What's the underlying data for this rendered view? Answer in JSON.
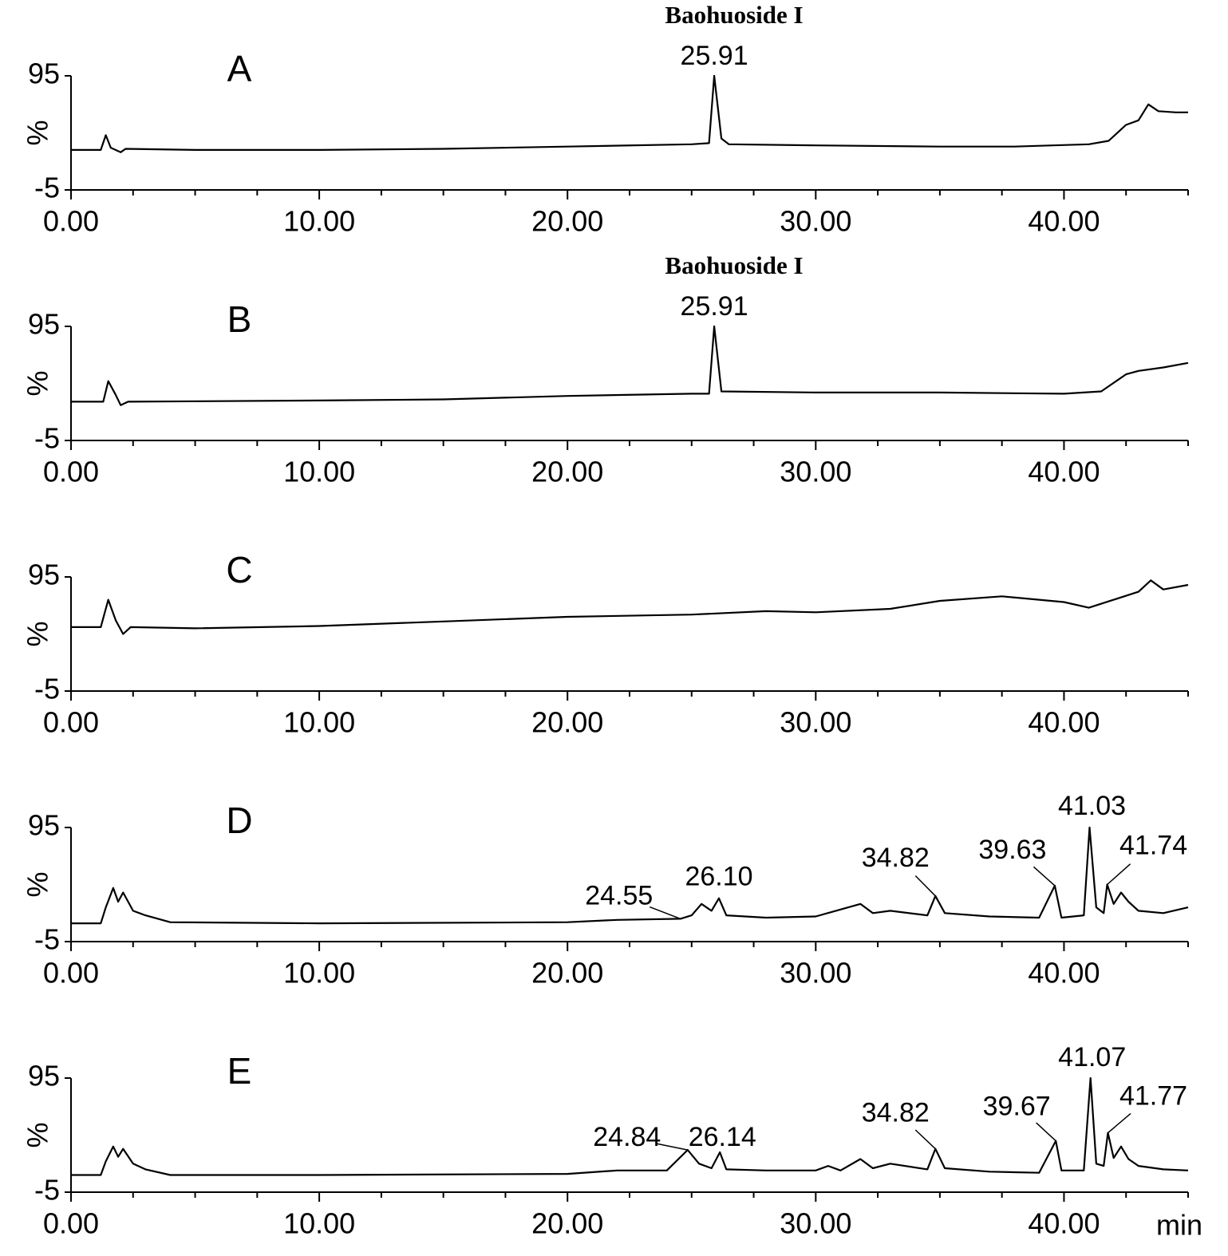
{
  "chart_data": [
    {
      "type": "line",
      "panel": "A",
      "compound": "Baohuoside I",
      "ylabel": "%",
      "color": "#000000",
      "x": [
        0,
        1.2,
        1.4,
        1.6,
        2.0,
        2.2,
        5,
        10,
        15,
        20,
        25,
        25.7,
        25.91,
        26.2,
        26.5,
        30,
        35,
        38,
        41,
        41.8,
        42.5,
        43,
        43.4,
        43.8,
        44.5,
        45
      ],
      "values": [
        30,
        30,
        43,
        32,
        28,
        31,
        30,
        30,
        31,
        33,
        35,
        36,
        95,
        40,
        35,
        34,
        33,
        33,
        35,
        38,
        52,
        56,
        70,
        64,
        63,
        63
      ],
      "xlim": [
        0,
        45
      ],
      "ylim": [
        -5,
        95
      ],
      "xticks": [
        {
          "value": 0,
          "label": "0.00"
        },
        {
          "value": 10,
          "label": "10.00"
        },
        {
          "value": 20,
          "label": "20.00"
        },
        {
          "value": 30,
          "label": "30.00"
        },
        {
          "value": 40,
          "label": "40.00"
        }
      ],
      "xminor_ticks": [
        2.5,
        5,
        7.5,
        12.5,
        15,
        17.5,
        22.5,
        25,
        27.5,
        32.5,
        35,
        37.5,
        42.5,
        45
      ],
      "yticks": [
        -5,
        95
      ],
      "peak_labels": [
        25.91
      ]
    },
    {
      "type": "line",
      "panel": "B",
      "compound": "Baohuoside I",
      "ylabel": "%",
      "color": "#000000",
      "x": [
        0,
        1.3,
        1.5,
        1.8,
        2.0,
        2.3,
        10,
        15,
        20,
        25,
        25.7,
        25.91,
        26.2,
        30,
        35,
        40,
        41.5,
        42.5,
        43,
        44,
        45
      ],
      "values": [
        29,
        29,
        47,
        35,
        26,
        29,
        30,
        31,
        34,
        36,
        36,
        95,
        38,
        37,
        37,
        36,
        38,
        53,
        56,
        59,
        63
      ],
      "xlim": [
        0,
        45
      ],
      "ylim": [
        -5,
        95
      ],
      "xticks": [
        {
          "value": 0,
          "label": "0.00"
        },
        {
          "value": 10,
          "label": "10.00"
        },
        {
          "value": 20,
          "label": "20.00"
        },
        {
          "value": 30,
          "label": "30.00"
        },
        {
          "value": 40,
          "label": "40.00"
        }
      ],
      "xminor_ticks": [
        2.5,
        5,
        7.5,
        12.5,
        15,
        17.5,
        22.5,
        25,
        27.5,
        32.5,
        35,
        37.5,
        42.5,
        45
      ],
      "yticks": [
        -5,
        95
      ],
      "peak_labels": [
        25.91
      ]
    },
    {
      "type": "line",
      "panel": "C",
      "ylabel": "%",
      "color": "#000000",
      "x": [
        0,
        1.2,
        1.5,
        1.8,
        2.1,
        2.4,
        5,
        10,
        15,
        20,
        25,
        28,
        30,
        33,
        35,
        37.5,
        40,
        41,
        42,
        43,
        43.5,
        44,
        45
      ],
      "values": [
        51,
        51,
        75,
        57,
        45,
        51,
        50,
        52,
        56,
        60,
        62,
        65,
        64,
        67,
        74,
        78,
        73,
        68,
        75,
        82,
        92,
        84,
        88
      ],
      "xlim": [
        0,
        45
      ],
      "ylim": [
        -5,
        95
      ],
      "xticks": [
        {
          "value": 0,
          "label": "0.00"
        },
        {
          "value": 10,
          "label": "10.00"
        },
        {
          "value": 20,
          "label": "20.00"
        },
        {
          "value": 30,
          "label": "30.00"
        },
        {
          "value": 40,
          "label": "40.00"
        }
      ],
      "xminor_ticks": [
        2.5,
        5,
        7.5,
        12.5,
        15,
        17.5,
        22.5,
        25,
        27.5,
        32.5,
        35,
        37.5,
        42.5,
        45
      ],
      "yticks": [
        -5,
        95
      ]
    },
    {
      "type": "line",
      "panel": "D",
      "ylabel": "%",
      "color": "#000000",
      "x": [
        0,
        1.2,
        1.4,
        1.7,
        1.9,
        2.1,
        2.5,
        3,
        4,
        10,
        20,
        22,
        24.55,
        25,
        25.4,
        25.8,
        26.1,
        26.4,
        28,
        30,
        31.8,
        32.3,
        33,
        34.5,
        34.82,
        35.2,
        37,
        39,
        39.63,
        39.9,
        40.8,
        41.03,
        41.3,
        41.6,
        41.74,
        42,
        42.3,
        42.6,
        43,
        44,
        45
      ],
      "values": [
        11,
        11,
        25,
        42,
        30,
        38,
        22,
        18,
        12,
        11,
        12,
        14,
        15,
        18,
        28,
        22,
        33,
        18,
        16,
        17,
        28,
        20,
        22,
        18,
        35,
        20,
        17,
        16,
        44,
        16,
        18,
        95,
        25,
        20,
        45,
        28,
        38,
        30,
        22,
        20,
        25
      ],
      "xlim": [
        0,
        45
      ],
      "ylim": [
        -5,
        95
      ],
      "xticks": [
        {
          "value": 0,
          "label": "0.00"
        },
        {
          "value": 10,
          "label": "10.00"
        },
        {
          "value": 20,
          "label": "20.00"
        },
        {
          "value": 30,
          "label": "30.00"
        },
        {
          "value": 40,
          "label": "40.00"
        }
      ],
      "xminor_ticks": [
        2.5,
        5,
        7.5,
        12.5,
        15,
        17.5,
        22.5,
        25,
        27.5,
        32.5,
        35,
        37.5,
        42.5,
        45
      ],
      "yticks": [
        -5,
        95
      ],
      "peak_labels": [
        24.55,
        {
          "value": 26.1,
          "label": "26.10"
        },
        34.82,
        39.63,
        41.03,
        41.74
      ]
    },
    {
      "type": "line",
      "panel": "E",
      "ylabel": "%",
      "xlabel": "min",
      "color": "#000000",
      "x": [
        0,
        1.2,
        1.4,
        1.7,
        1.9,
        2.1,
        2.5,
        3,
        4,
        10,
        20,
        22,
        24,
        24.84,
        25.3,
        25.8,
        26.14,
        26.4,
        28,
        30,
        30.5,
        31,
        31.8,
        32.3,
        33,
        34.5,
        34.82,
        35.2,
        37,
        39,
        39.67,
        39.9,
        40.8,
        41.07,
        41.3,
        41.6,
        41.77,
        42,
        42.3,
        42.6,
        43,
        44,
        45
      ],
      "values": [
        10,
        10,
        22,
        35,
        26,
        33,
        20,
        15,
        10,
        10,
        11,
        14,
        14,
        32,
        20,
        16,
        30,
        15,
        14,
        14,
        18,
        14,
        24,
        16,
        20,
        15,
        33,
        16,
        13,
        12,
        40,
        14,
        14,
        95,
        20,
        18,
        47,
        25,
        35,
        24,
        18,
        15,
        14
      ],
      "xlim": [
        0,
        45
      ],
      "ylim": [
        -5,
        95
      ],
      "xticks": [
        {
          "value": 0,
          "label": "0.00"
        },
        {
          "value": 10,
          "label": "10.00"
        },
        {
          "value": 20,
          "label": "20.00"
        },
        {
          "value": 30,
          "label": "30.00"
        },
        {
          "value": 40,
          "label": "40.00"
        }
      ],
      "xminor_ticks": [
        2.5,
        5,
        7.5,
        12.5,
        15,
        17.5,
        22.5,
        25,
        27.5,
        32.5,
        35,
        37.5,
        42.5,
        45
      ],
      "yticks": [
        -5,
        95
      ],
      "peak_labels": [
        24.84,
        26.14,
        34.82,
        39.67,
        41.07,
        41.77
      ]
    }
  ]
}
